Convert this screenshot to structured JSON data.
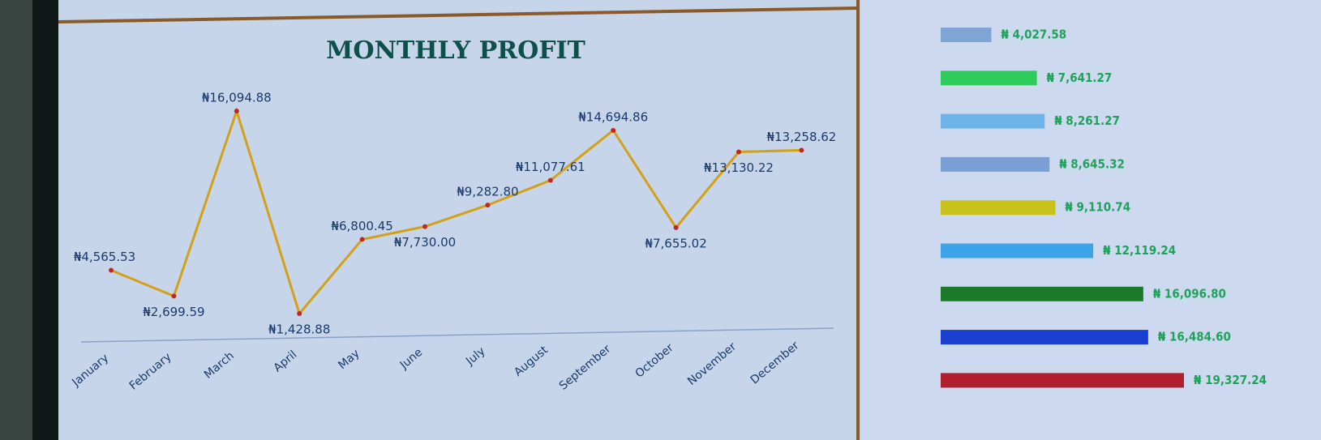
{
  "chart_data": [
    {
      "type": "line",
      "title": "MONTHLY PROFIT",
      "categories": [
        "January",
        "February",
        "March",
        "April",
        "May",
        "June",
        "July",
        "August",
        "September",
        "October",
        "November",
        "December"
      ],
      "values": [
        4565.53,
        2699.59,
        16094.88,
        1428.88,
        6800.45,
        7730.0,
        9282.8,
        11077.61,
        14694.86,
        7655.02,
        13130.22,
        13258.62
      ],
      "value_labels": [
        "₦4,565.53",
        "₦2,699.59",
        "₦16,094.88",
        "₦1,428.88",
        "₦6,800.45",
        "₦7,730.00",
        "₦9,282.80",
        "₦11,077.61",
        "₦14,694.86",
        "₦7,655.02",
        "₦13,130.22",
        "₦13,258.62"
      ],
      "color": "#d4a017",
      "marker_color": "#c0281e"
    },
    {
      "type": "bar",
      "values": [
        4027.58,
        7641.27,
        8261.27,
        8645.32,
        9110.74,
        12119.24,
        16096.8,
        16484.6,
        19327.24
      ],
      "value_labels": [
        "₦ 4,027.58",
        "₦ 7,641.27",
        "₦ 8,261.27",
        "₦ 8,645.32",
        "₦ 9,110.74",
        "₦ 12,119.24",
        "₦ 16,096.80",
        "₦ 16,484.60",
        "₦ 19,327.24"
      ],
      "colors": [
        "#7fa4d6",
        "#2ecc5a",
        "#6cb3e8",
        "#7a9fd4",
        "#c9c21a",
        "#3ea4ea",
        "#1a7a2a",
        "#1a3fd0",
        "#b01f2e"
      ]
    }
  ]
}
